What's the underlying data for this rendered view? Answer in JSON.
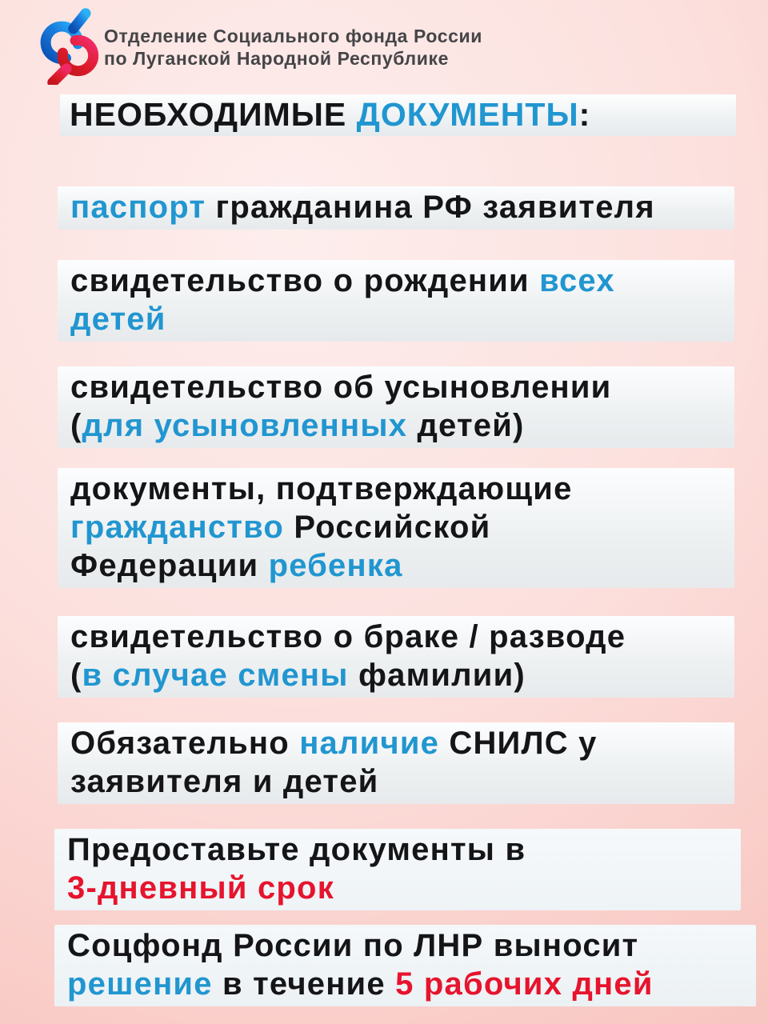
{
  "colors": {
    "accent_blue": "#2196d0",
    "accent_red": "#e6142d",
    "text_dark": "#151517",
    "header_text": "#454548",
    "background_pink": "#f9c9c4",
    "box_background": "#eef1f2",
    "logo_blue": "#1e9bf0",
    "logo_red": "#d81f2a"
  },
  "header": {
    "logo_icon": "sfr-logo",
    "org_line1": "Отделение Социального фонда России",
    "org_line2": "по Луганской Народной Республике"
  },
  "title": {
    "segments": [
      {
        "t": "НЕОБХОДИМЫЕ ",
        "c": "dark"
      },
      {
        "t": "ДОКУМЕНТЫ",
        "c": "blue"
      },
      {
        "t": ":",
        "c": "dark"
      }
    ]
  },
  "items": [
    {
      "lines": [
        [
          {
            "t": "паспорт ",
            "c": "blue"
          },
          {
            "t": "гражданина РФ заявителя",
            "c": "dark"
          }
        ]
      ]
    },
    {
      "lines": [
        [
          {
            "t": "свидетельство о рождении ",
            "c": "dark"
          },
          {
            "t": "всех",
            "c": "blue"
          }
        ],
        [
          {
            "t": "детей",
            "c": "blue"
          }
        ]
      ]
    },
    {
      "lines": [
        [
          {
            "t": "свидетельство об усыновлении",
            "c": "dark"
          }
        ],
        [
          {
            "t": "(",
            "c": "dark"
          },
          {
            "t": "для усыновленных",
            "c": "blue"
          },
          {
            "t": " детей)",
            "c": "dark"
          }
        ]
      ]
    },
    {
      "lines": [
        [
          {
            "t": "документы, подтверждающие",
            "c": "dark"
          }
        ],
        [
          {
            "t": "гражданство",
            "c": "blue"
          },
          {
            "t": " Российской",
            "c": "dark"
          }
        ],
        [
          {
            "t": "Федерации ",
            "c": "dark"
          },
          {
            "t": "ребенка",
            "c": "blue"
          }
        ]
      ]
    },
    {
      "lines": [
        [
          {
            "t": "свидетельство о браке / разводе",
            "c": "dark"
          }
        ],
        [
          {
            "t": "(",
            "c": "dark"
          },
          {
            "t": "в случае смены",
            "c": "blue"
          },
          {
            "t": " фамилии)",
            "c": "dark"
          }
        ]
      ]
    },
    {
      "lines": [
        [
          {
            "t": "Обязательно ",
            "c": "dark"
          },
          {
            "t": "наличие",
            "c": "blue"
          },
          {
            "t": " СНИЛС у",
            "c": "dark"
          }
        ],
        [
          {
            "t": "заявителя и детей",
            "c": "dark"
          }
        ]
      ]
    },
    {
      "lines": [
        [
          {
            "t": "Предоставьте документы в",
            "c": "dark"
          }
        ],
        [
          {
            "t": "3-дневный срок",
            "c": "red"
          }
        ]
      ]
    },
    {
      "lines": [
        [
          {
            "t": "Соцфонд России по ЛНР выносит",
            "c": "dark"
          }
        ],
        [
          {
            "t": "решение",
            "c": "blue"
          },
          {
            "t": " в течение ",
            "c": "dark"
          },
          {
            "t": "5 рабочих дней",
            "c": "red"
          }
        ]
      ]
    }
  ]
}
